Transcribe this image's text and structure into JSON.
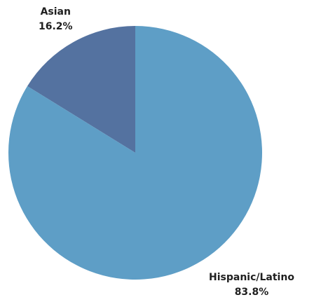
{
  "chart_data": {
    "type": "pie",
    "title": "",
    "slices": [
      {
        "label": "Asian",
        "value": 16.2,
        "value_label": "16.2%",
        "color": "#5472a0"
      },
      {
        "label": "Hispanic/Latino",
        "value": 83.8,
        "value_label": "83.8%",
        "color": "#5e9ec6"
      }
    ],
    "start": "12 o'clock",
    "direction": "counterclockwise",
    "legend": "none"
  }
}
